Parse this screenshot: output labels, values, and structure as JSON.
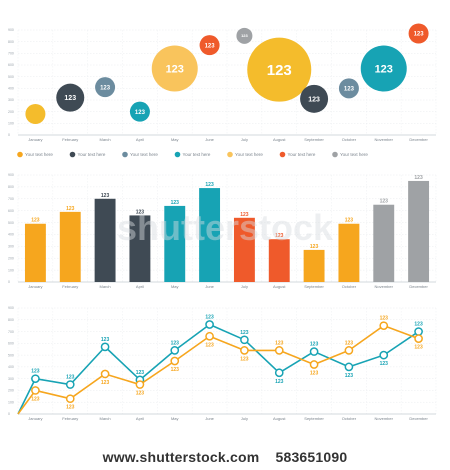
{
  "colors": {
    "yellow": "#F4BC2C",
    "orange": "#F6A61E",
    "dark": "#3F4A54",
    "slate": "#6C8C9F",
    "teal": "#17A3B4",
    "red": "#EF5A2B",
    "gray": "#9FA2A5",
    "lightyellow": "#F9C45C",
    "grid": "#e8ebee",
    "axis": "#c9ced3"
  },
  "chart_data": [
    {
      "type": "scatter",
      "variant": "bubble",
      "categories": [
        "January",
        "February",
        "March",
        "April",
        "May",
        "June",
        "July",
        "August",
        "September",
        "October",
        "November",
        "December"
      ],
      "y_ticks": [
        "0",
        "100",
        "200",
        "300",
        "400",
        "500",
        "600",
        "700",
        "800",
        "900"
      ],
      "ylim": [
        0,
        900
      ],
      "bubbles": [
        {
          "category": "January",
          "y": 180,
          "size": "small",
          "label": "",
          "color": "yellow"
        },
        {
          "category": "February",
          "y": 320,
          "size": "medium",
          "label": "123",
          "color": "dark"
        },
        {
          "category": "March",
          "y": 410,
          "size": "small",
          "label": "123",
          "color": "slate"
        },
        {
          "category": "April",
          "y": 200,
          "size": "small",
          "label": "123",
          "color": "teal"
        },
        {
          "category": "May",
          "y": 570,
          "size": "large",
          "label": "123",
          "color": "lightyellow"
        },
        {
          "category": "June",
          "y": 770,
          "size": "small",
          "label": "123",
          "color": "red"
        },
        {
          "category": "July",
          "y": 850,
          "size": "tiny",
          "label": "123",
          "color": "gray"
        },
        {
          "category": "August",
          "y": 560,
          "size": "xlarge",
          "label": "123",
          "color": "yellow"
        },
        {
          "category": "September",
          "y": 310,
          "size": "medium",
          "label": "123",
          "color": "dark"
        },
        {
          "category": "October",
          "y": 400,
          "size": "small",
          "label": "123",
          "color": "slate"
        },
        {
          "category": "November",
          "y": 570,
          "size": "large",
          "label": "123",
          "color": "teal"
        },
        {
          "category": "December",
          "y": 870,
          "size": "small",
          "label": "123",
          "color": "red"
        }
      ],
      "legend": [
        {
          "label": "Your text here",
          "color": "orange"
        },
        {
          "label": "Your text here",
          "color": "dark"
        },
        {
          "label": "Your text here",
          "color": "slate"
        },
        {
          "label": "Your text here",
          "color": "teal"
        },
        {
          "label": "Your text here",
          "color": "lightyellow"
        },
        {
          "label": "Your text here",
          "color": "red"
        },
        {
          "label": "Your text here",
          "color": "gray"
        }
      ]
    },
    {
      "type": "bar",
      "categories": [
        "January",
        "February",
        "March",
        "April",
        "May",
        "June",
        "July",
        "August",
        "September",
        "October",
        "November",
        "December"
      ],
      "values": [
        490,
        590,
        700,
        560,
        640,
        790,
        540,
        360,
        270,
        490,
        650,
        850
      ],
      "labels": [
        "123",
        "123",
        "123",
        "123",
        "123",
        "123",
        "123",
        "123",
        "123",
        "123",
        "123",
        "123"
      ],
      "colors": [
        "orange",
        "orange",
        "dark",
        "dark",
        "teal",
        "teal",
        "red",
        "red",
        "orange",
        "orange",
        "gray",
        "gray"
      ],
      "y_ticks": [
        "0",
        "100",
        "200",
        "300",
        "400",
        "500",
        "600",
        "700",
        "800",
        "900"
      ],
      "ylim": [
        0,
        900
      ]
    },
    {
      "type": "line",
      "categories": [
        "January",
        "February",
        "March",
        "April",
        "May",
        "June",
        "July",
        "August",
        "September",
        "October",
        "November",
        "December"
      ],
      "y_ticks": [
        "0",
        "100",
        "200",
        "300",
        "400",
        "500",
        "600",
        "700",
        "800",
        "900"
      ],
      "ylim": [
        0,
        900
      ],
      "x_start_value": 0,
      "series": [
        {
          "color": "teal",
          "values": [
            300,
            250,
            570,
            290,
            540,
            760,
            630,
            350,
            530,
            400,
            500,
            700
          ],
          "labels": [
            "123",
            "123",
            "123",
            "123",
            "123",
            "123",
            "123",
            "123",
            "123",
            "123",
            "123",
            "123"
          ]
        },
        {
          "color": "orange",
          "values": [
            200,
            130,
            340,
            250,
            450,
            660,
            540,
            540,
            420,
            540,
            750,
            640
          ],
          "labels": [
            "123",
            "123",
            "123",
            "123",
            "123",
            "123",
            "123",
            "123",
            "123",
            "123",
            "123",
            "123"
          ]
        }
      ]
    }
  ],
  "watermark": {
    "text": "shutterstock"
  },
  "footer": {
    "site": "www.shutterstock.com",
    "id": "583651090"
  }
}
